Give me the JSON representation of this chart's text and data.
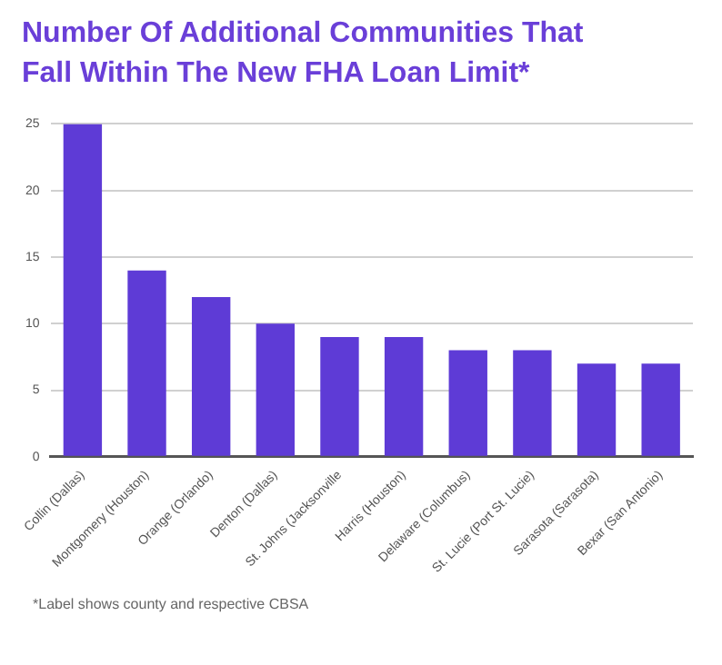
{
  "chart_data": {
    "type": "bar",
    "title": "Number Of Additional Communities That Fall Within The New FHA Loan Limit*",
    "categories": [
      "Collin (Dallas)",
      "Montgomery (Houston)",
      "Orange (Orlando)",
      "Denton (Dallas)",
      "St. Johns (Jacksonville",
      "Harris (Houston)",
      "Delaware (Columbus)",
      "St. Lucie (Port St. Lucie)",
      "Sarasota (Sarasota)",
      "Bexar (San Antonio)"
    ],
    "values": [
      25,
      14,
      12,
      10,
      9,
      9,
      8,
      8,
      7,
      7
    ],
    "color": "#5e3bd6",
    "ylim": [
      0,
      25
    ],
    "yticks": [
      0,
      5,
      10,
      15,
      20,
      25
    ],
    "grid": "y",
    "annotations": [
      "*Label shows county and respective CBSA"
    ]
  }
}
